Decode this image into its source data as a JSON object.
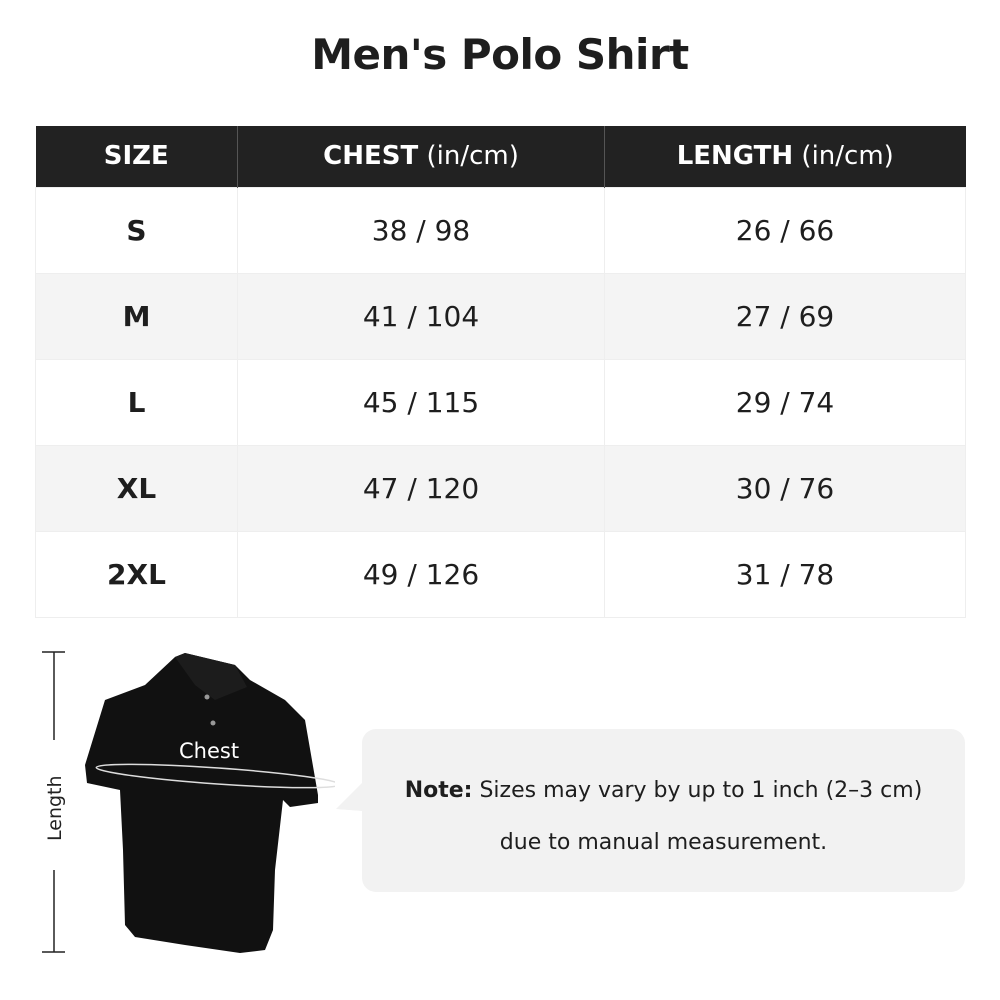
{
  "title": "Men's Polo Shirt",
  "table": {
    "headers": [
      {
        "label": "SIZE",
        "unit": ""
      },
      {
        "label": "CHEST",
        "unit": " (in/cm)"
      },
      {
        "label": "LENGTH",
        "unit": " (in/cm)"
      }
    ],
    "rows": [
      {
        "size": "S",
        "chest": "38 / 98",
        "length": "26 / 66"
      },
      {
        "size": "M",
        "chest": "41 / 104",
        "length": "27 / 69"
      },
      {
        "size": "L",
        "chest": "45 / 115",
        "length": "29 / 74"
      },
      {
        "size": "XL",
        "chest": "47 / 120",
        "length": "30 / 76"
      },
      {
        "size": "2XL",
        "chest": "49 / 126",
        "length": "31 / 78"
      }
    ]
  },
  "diagram": {
    "chest_label": "Chest",
    "length_label": "Length",
    "shirt_color": "#111111"
  },
  "note": {
    "prefix": "Note:",
    "line1": " Sizes may vary by up to 1 inch (2–3 cm)",
    "line2": "due to manual measurement."
  }
}
